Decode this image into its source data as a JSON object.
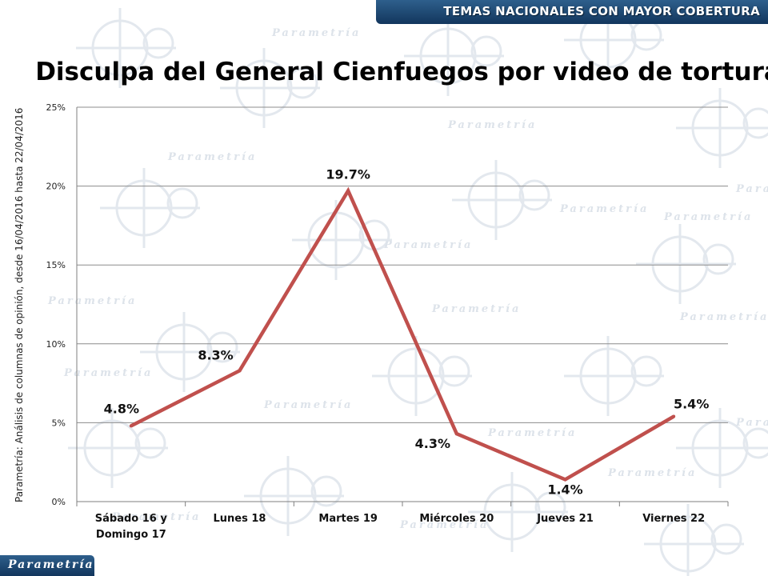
{
  "header": {
    "title": "TEMAS NACIONALES CON MAYOR COBERTURA"
  },
  "watermark_text": "Parametría",
  "source_note": "Parametría: Análisis de columnas de opinión, desde 16/04/2016 hasta 22/04/2016",
  "footer": {
    "brand": "Parametría"
  },
  "colors": {
    "line": "#c0504d",
    "header_bg": "#1f4a75",
    "grid": "#8c8c8c"
  },
  "chart_data": {
    "type": "line",
    "title": "Disculpa del General Cienfuegos por video de tortura",
    "categories": [
      [
        "Sábado 16 y",
        "Domingo 17"
      ],
      [
        "Lunes 18"
      ],
      [
        "Martes 19"
      ],
      [
        "Miércoles 20"
      ],
      [
        "Jueves 21"
      ],
      [
        "Viernes 22"
      ]
    ],
    "values": [
      4.8,
      8.3,
      19.7,
      4.3,
      1.4,
      5.4
    ],
    "data_labels": [
      "4.8%",
      "8.3%",
      "19.7%",
      "4.3%",
      "1.4%",
      "5.4%"
    ],
    "y_ticks": [
      0,
      5,
      10,
      15,
      20,
      25
    ],
    "y_tick_labels": [
      "0%",
      "5%",
      "10%",
      "15%",
      "20%",
      "25%"
    ],
    "ylim": [
      0,
      25
    ],
    "grid": true,
    "legend": false
  }
}
